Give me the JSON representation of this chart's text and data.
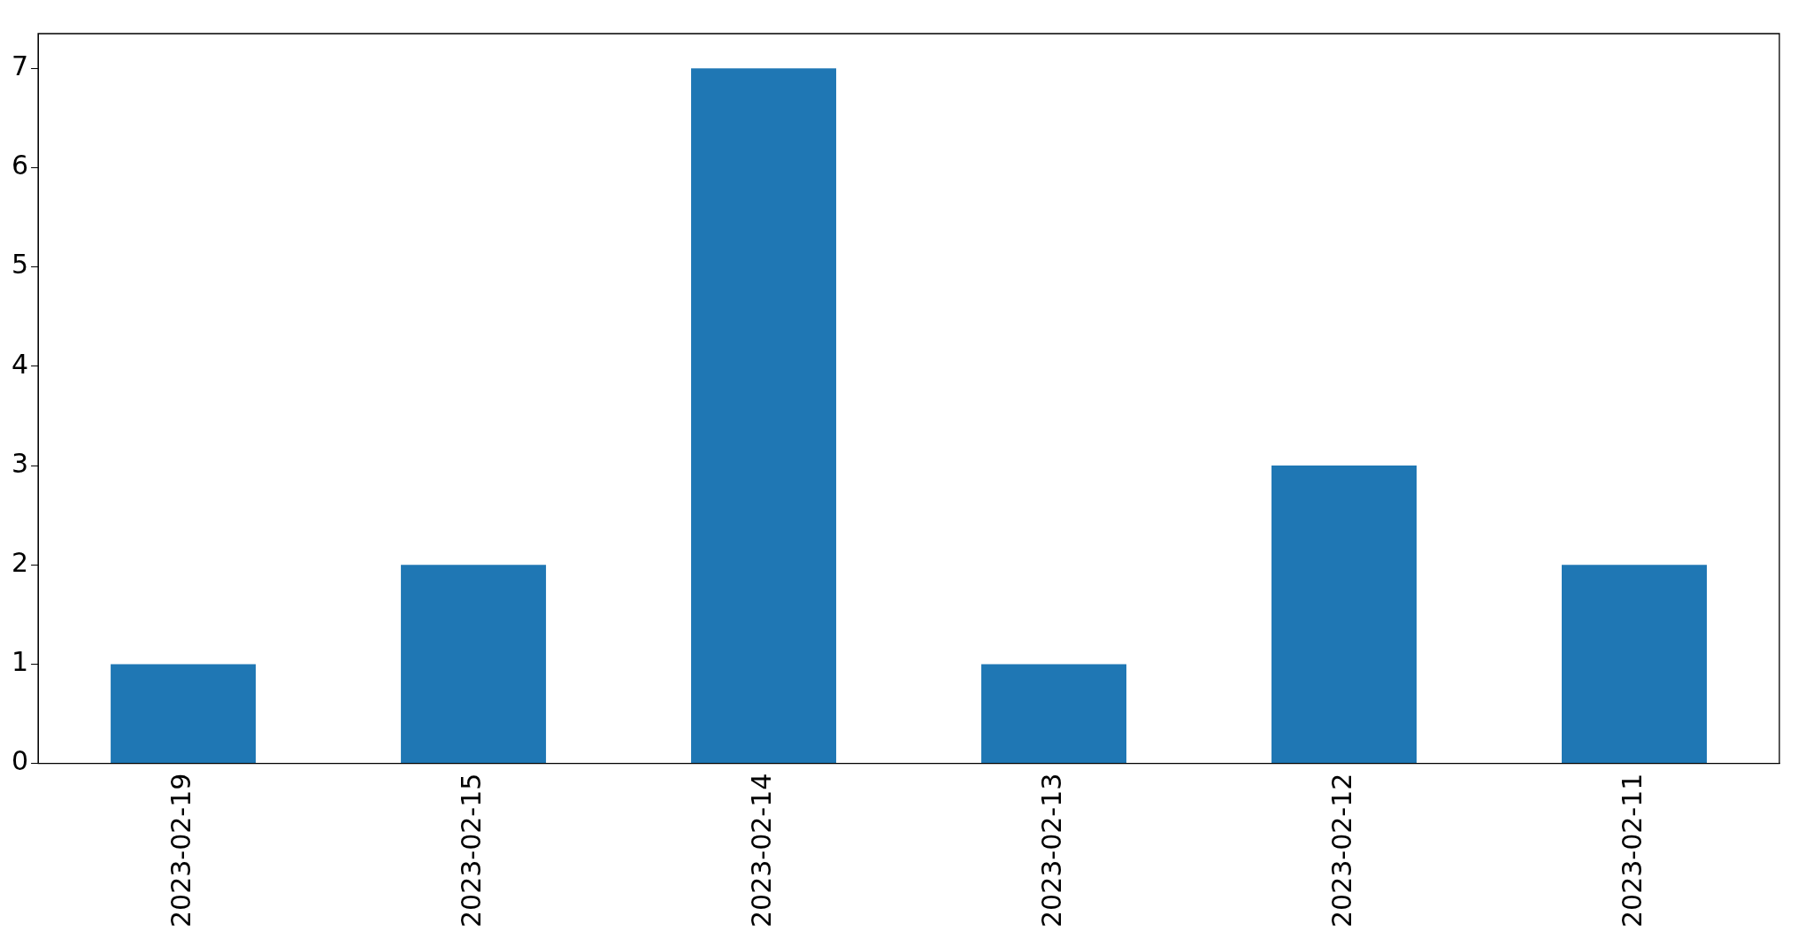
{
  "chart_data": {
    "type": "bar",
    "categories": [
      "2023-02-19",
      "2023-02-15",
      "2023-02-14",
      "2023-02-13",
      "2023-02-12",
      "2023-02-11"
    ],
    "values": [
      1,
      2,
      7,
      1,
      3,
      2
    ],
    "color": "#1f77b4",
    "ylim": [
      0,
      7.35
    ],
    "yticks": [
      0,
      1,
      2,
      3,
      4,
      5,
      6,
      7
    ],
    "grid": false,
    "legend": false
  }
}
